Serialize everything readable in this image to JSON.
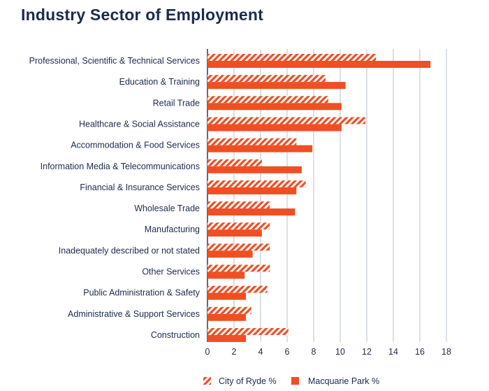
{
  "chart_data": {
    "type": "bar",
    "orientation": "horizontal",
    "title": "Industry Sector of Employment",
    "categories": [
      "Professional, Scientific & Technical Services",
      "Education & Training",
      "Retail Trade",
      "Healthcare & Social Assistance",
      "Accommodation & Food Services",
      "Information Media & Telecommunications",
      "Financial & Insurance Services",
      "Wholesale Trade",
      "Manufacturing",
      "Inadequately described or not stated",
      "Other Services",
      "Public Administration & Safety",
      "Administrative & Support Services",
      "Construction"
    ],
    "series": [
      {
        "name": "City of Ryde %",
        "pattern": "hatched",
        "color": "#f04e23",
        "values": [
          12.7,
          8.9,
          9.1,
          11.9,
          6.7,
          4.1,
          7.4,
          4.7,
          4.7,
          4.7,
          4.7,
          4.5,
          3.3,
          6.1
        ]
      },
      {
        "name": "Macquarie Park %",
        "pattern": "solid",
        "color": "#f04e23",
        "values": [
          16.8,
          10.4,
          10.1,
          10.1,
          7.9,
          7.1,
          6.7,
          6.6,
          4.1,
          3.4,
          2.8,
          2.9,
          2.9,
          2.9
        ]
      }
    ],
    "xlim": [
      0,
      18
    ],
    "xticks": [
      0,
      2,
      4,
      6,
      8,
      10,
      12,
      14,
      16,
      18
    ],
    "grid": true,
    "legend": "bottom-center"
  },
  "colors": {
    "title": "#1b2b4b",
    "text": "#1b2b4b",
    "bar": "#f04e23",
    "grid": "#b7c0cc",
    "axis": "#1b2b4b"
  }
}
